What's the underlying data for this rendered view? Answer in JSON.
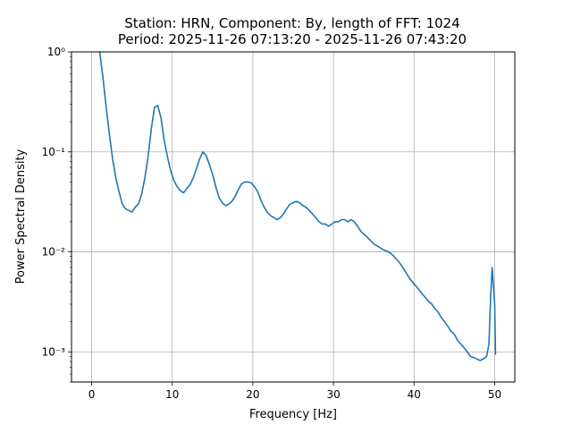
{
  "chart_data": {
    "type": "line",
    "title": "Station: HRN, Component: By, length of FFT: 1024\nPeriod: 2025-11-26 07:13:20 - 2025-11-26 07:43:20",
    "title_lines": [
      "Station: HRN, Component: By, length of FFT: 1024",
      "Period: 2025-11-26 07:13:20 - 2025-11-26 07:43:20"
    ],
    "xlabel": "Frequency [Hz]",
    "ylabel": "Power Spectral Density",
    "xlim": [
      -2.5,
      52.5
    ],
    "ylim": [
      0.0005,
      1
    ],
    "yscale": "log",
    "grid": true,
    "xticks": [
      0,
      10,
      20,
      30,
      40,
      50
    ],
    "xtick_labels": [
      "0",
      "10",
      "20",
      "30",
      "40",
      "50"
    ],
    "yticks": [
      0.001,
      0.01,
      0.1,
      1
    ],
    "ytick_labels": [
      "10⁻³",
      "10⁻²",
      "10⁻¹",
      "10⁰"
    ],
    "series": [
      {
        "color": "#1f77b4",
        "x": [
          1.0,
          1.4,
          1.8,
          2.2,
          2.6,
          3.0,
          3.4,
          3.8,
          4.2,
          4.6,
          5.0,
          5.4,
          5.8,
          6.2,
          6.6,
          7.0,
          7.4,
          7.8,
          8.2,
          8.6,
          9.0,
          9.4,
          9.8,
          10.2,
          10.6,
          11.0,
          11.4,
          11.8,
          12.2,
          12.6,
          13.0,
          13.4,
          13.8,
          14.2,
          14.6,
          15.0,
          15.4,
          15.8,
          16.2,
          16.6,
          17.0,
          17.4,
          17.8,
          18.2,
          18.6,
          19.0,
          19.4,
          19.8,
          20.2,
          20.6,
          21.0,
          21.4,
          21.8,
          22.2,
          22.6,
          23.0,
          23.4,
          23.8,
          24.2,
          24.6,
          25.0,
          25.4,
          25.8,
          26.2,
          26.6,
          27.0,
          27.4,
          27.8,
          28.2,
          28.6,
          29.0,
          29.4,
          29.8,
          30.2,
          30.6,
          31.0,
          31.4,
          31.8,
          32.2,
          32.6,
          33.0,
          33.4,
          33.8,
          34.2,
          34.6,
          35.0,
          35.4,
          35.8,
          36.2,
          36.6,
          37.0,
          37.4,
          37.8,
          38.2,
          38.6,
          39.0,
          39.4,
          39.8,
          40.2,
          40.6,
          41.0,
          41.4,
          41.8,
          42.2,
          42.6,
          43.0,
          43.4,
          43.8,
          44.2,
          44.6,
          45.0,
          45.4,
          45.8,
          46.2,
          46.6,
          47.0,
          47.4,
          47.8,
          48.2,
          48.6,
          49.0,
          49.3,
          49.5,
          49.7,
          49.85,
          50.0,
          50.1
        ],
        "y": [
          1.0,
          0.55,
          0.28,
          0.15,
          0.085,
          0.055,
          0.04,
          0.03,
          0.027,
          0.026,
          0.025,
          0.028,
          0.03,
          0.038,
          0.055,
          0.09,
          0.17,
          0.28,
          0.29,
          0.22,
          0.13,
          0.09,
          0.065,
          0.052,
          0.045,
          0.041,
          0.039,
          0.043,
          0.047,
          0.055,
          0.068,
          0.085,
          0.1,
          0.092,
          0.075,
          0.06,
          0.045,
          0.035,
          0.031,
          0.029,
          0.03,
          0.032,
          0.036,
          0.042,
          0.048,
          0.05,
          0.05,
          0.049,
          0.045,
          0.04,
          0.033,
          0.028,
          0.025,
          0.023,
          0.022,
          0.021,
          0.022,
          0.024,
          0.027,
          0.03,
          0.031,
          0.032,
          0.031,
          0.029,
          0.028,
          0.026,
          0.024,
          0.022,
          0.02,
          0.019,
          0.019,
          0.018,
          0.019,
          0.02,
          0.02,
          0.021,
          0.021,
          0.02,
          0.021,
          0.02,
          0.018,
          0.016,
          0.015,
          0.014,
          0.013,
          0.012,
          0.0115,
          0.011,
          0.0105,
          0.0102,
          0.0098,
          0.0092,
          0.0085,
          0.0078,
          0.007,
          0.0062,
          0.0055,
          0.005,
          0.0046,
          0.0042,
          0.0038,
          0.0035,
          0.0032,
          0.003,
          0.0027,
          0.0025,
          0.0022,
          0.002,
          0.0018,
          0.0016,
          0.0015,
          0.0013,
          0.0012,
          0.0011,
          0.001,
          0.0009,
          0.00088,
          0.00085,
          0.00082,
          0.00085,
          0.0009,
          0.0012,
          0.0035,
          0.007,
          0.0045,
          0.003,
          0.00095
        ]
      }
    ]
  }
}
